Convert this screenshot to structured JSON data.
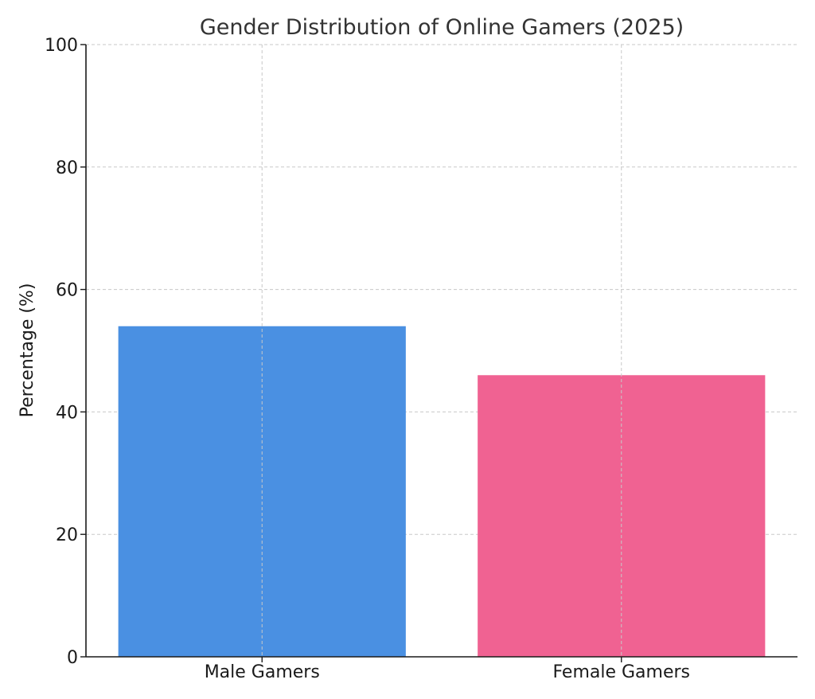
{
  "chart_data": {
    "type": "bar",
    "title": "Gender Distribution of Online Gamers (2025)",
    "xlabel": "",
    "ylabel": "Percentage (%)",
    "categories": [
      "Male Gamers",
      "Female Gamers"
    ],
    "values": [
      54,
      46
    ],
    "colors": [
      "#4a90e2",
      "#f06292"
    ],
    "ylim": [
      0,
      100
    ],
    "yticks": [
      "0",
      "20",
      "40",
      "60",
      "80",
      "100"
    ],
    "grid": true,
    "legend": "none"
  }
}
